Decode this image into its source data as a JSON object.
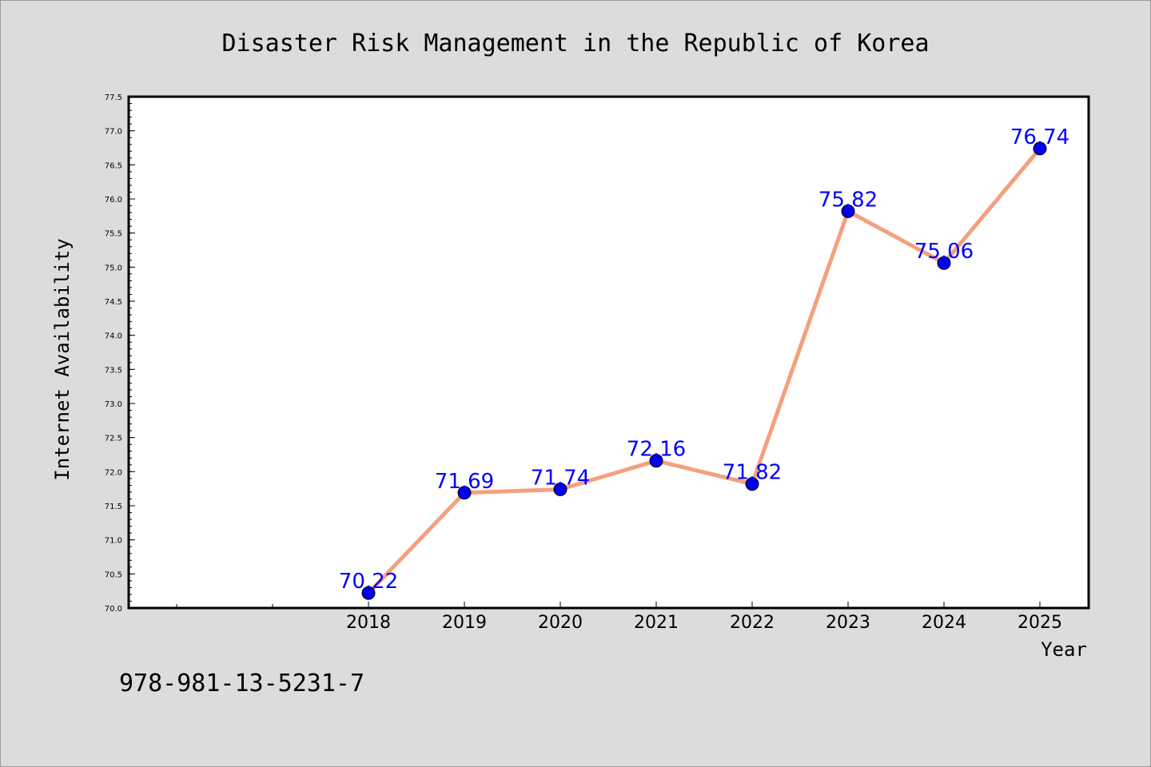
{
  "chart_data": {
    "type": "line",
    "title": "Disaster Risk Management in the Republic of Korea",
    "xlabel": "Year",
    "ylabel": "Internet Availability",
    "categories": [
      "2018",
      "2019",
      "2020",
      "2021",
      "2022",
      "2023",
      "2024",
      "2025"
    ],
    "series": [
      {
        "values": [
          70.22,
          71.69,
          71.74,
          72.16,
          71.82,
          75.82,
          75.06,
          76.74
        ]
      }
    ],
    "data_labels": [
      "70.22",
      "71.69",
      "71.74",
      "72.16",
      "71.82",
      "75.82",
      "75.06",
      "76.74"
    ],
    "ylim": [
      70.0,
      77.5
    ],
    "yticks": [
      "70.0",
      "70.5",
      "71.0",
      "71.5",
      "72.0",
      "72.5",
      "73.0",
      "73.5",
      "74.0",
      "74.5",
      "75.0",
      "75.5",
      "76.0",
      "76.5",
      "77.0",
      "77.5"
    ],
    "grid": false,
    "line_color": "#f4a07f",
    "marker_color": "#0000ee",
    "label_color": "#0000ff",
    "background_color": "#dcdcdc",
    "plot_background": "#ffffff"
  },
  "annotation": {
    "isbn": "978-981-13-5231-7"
  }
}
